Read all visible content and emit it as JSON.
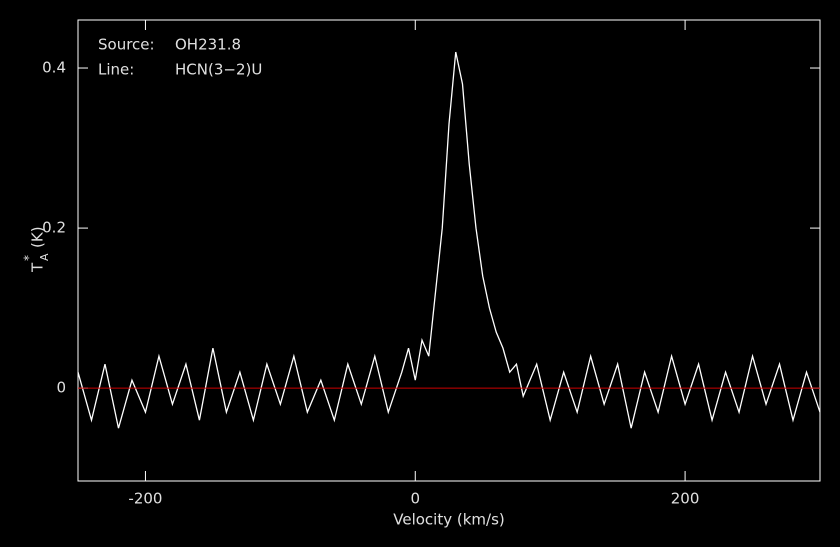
{
  "chart_data": {
    "type": "line",
    "xlabel": "Velocity (km/s)",
    "ylabel": {
      "main": "T",
      "sup": "*",
      "sub": "A",
      "unit": "(K)"
    },
    "annotations": [
      {
        "key": "Source:",
        "text": "OH231.8"
      },
      {
        "key": "Line:",
        "text": "HCN(3−2)U"
      }
    ],
    "x": [
      -250,
      -240,
      -230,
      -220,
      -210,
      -200,
      -190,
      -180,
      -170,
      -160,
      -150,
      -140,
      -130,
      -120,
      -110,
      -100,
      -90,
      -80,
      -70,
      -60,
      -50,
      -40,
      -30,
      -20,
      -10,
      -5,
      0,
      5,
      10,
      15,
      20,
      25,
      30,
      35,
      40,
      45,
      50,
      55,
      60,
      65,
      70,
      75,
      80,
      90,
      100,
      110,
      120,
      130,
      140,
      150,
      160,
      170,
      180,
      190,
      200,
      210,
      220,
      230,
      240,
      250,
      260,
      270,
      280,
      290,
      300
    ],
    "series": [
      {
        "color": "#ffffff",
        "values": [
          0.02,
          -0.04,
          0.03,
          -0.05,
          0.01,
          -0.03,
          0.04,
          -0.02,
          0.03,
          -0.04,
          0.05,
          -0.03,
          0.02,
          -0.04,
          0.03,
          -0.02,
          0.04,
          -0.03,
          0.01,
          -0.04,
          0.03,
          -0.02,
          0.04,
          -0.03,
          0.02,
          0.05,
          0.01,
          0.06,
          0.04,
          0.12,
          0.2,
          0.33,
          0.42,
          0.38,
          0.28,
          0.2,
          0.14,
          0.1,
          0.07,
          0.05,
          0.02,
          0.03,
          -0.01,
          0.03,
          -0.04,
          0.02,
          -0.03,
          0.04,
          -0.02,
          0.03,
          -0.05,
          0.02,
          -0.03,
          0.04,
          -0.02,
          0.03,
          -0.04,
          0.02,
          -0.03,
          0.04,
          -0.02,
          0.03,
          -0.04,
          0.02,
          -0.03
        ]
      }
    ],
    "baseline": {
      "value": 0,
      "color": "#cc0000"
    },
    "xlim": [
      -250,
      300
    ],
    "xticks": [
      -200,
      0,
      200
    ],
    "ylim": [
      -0.116,
      0.46
    ],
    "yticks": [
      0,
      0.2,
      0.4
    ]
  }
}
